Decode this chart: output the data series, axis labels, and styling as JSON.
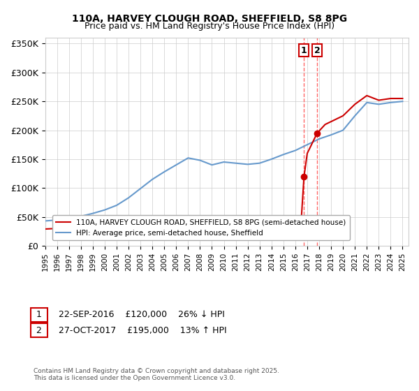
{
  "title": "110A, HARVEY CLOUGH ROAD, SHEFFIELD, S8 8PG",
  "subtitle": "Price paid vs. HM Land Registry's House Price Index (HPI)",
  "ylabel_ticks": [
    "£0",
    "£50K",
    "£100K",
    "£150K",
    "£200K",
    "£250K",
    "£300K",
    "£350K"
  ],
  "ytick_vals": [
    0,
    50000,
    100000,
    150000,
    200000,
    250000,
    300000,
    350000
  ],
  "ylim": [
    0,
    360000
  ],
  "xlim_start": 1995.0,
  "xlim_end": 2025.5,
  "sale1_date": 2016.73,
  "sale1_price": 120000,
  "sale1_label": "1",
  "sale1_annotation": "22-SEP-2016    £120,000    26% ↓ HPI",
  "sale2_date": 2017.83,
  "sale2_price": 195000,
  "sale2_label": "2",
  "sale2_annotation": "27-OCT-2017    £195,000    13% ↑ HPI",
  "red_color": "#cc0000",
  "blue_color": "#6699cc",
  "vline_color": "#ff6666",
  "legend_label_red": "110A, HARVEY CLOUGH ROAD, SHEFFIELD, S8 8PG (semi-detached house)",
  "legend_label_blue": "HPI: Average price, semi-detached house, Sheffield",
  "footnote": "Contains HM Land Registry data © Crown copyright and database right 2025.\nThis data is licensed under the Open Government Licence v3.0.",
  "hpi_years": [
    1995,
    1996,
    1997,
    1998,
    1999,
    2000,
    2001,
    2002,
    2003,
    2004,
    2005,
    2006,
    2007,
    2008,
    2009,
    2010,
    2011,
    2012,
    2013,
    2014,
    2015,
    2016,
    2017,
    2018,
    2019,
    2020,
    2021,
    2022,
    2023,
    2024,
    2025
  ],
  "hpi_values": [
    43000,
    44500,
    47000,
    51000,
    56000,
    62000,
    70000,
    83000,
    99000,
    115000,
    128000,
    140000,
    152000,
    148000,
    140000,
    145000,
    143000,
    141000,
    143000,
    150000,
    158000,
    165000,
    175000,
    185000,
    192000,
    200000,
    225000,
    248000,
    245000,
    248000,
    250000
  ],
  "red_years": [
    1995,
    1996,
    1997,
    1998,
    1999,
    2000,
    2001,
    2002,
    2003,
    2004,
    2005,
    2006,
    2007,
    2008,
    2009,
    2010,
    2011,
    2012,
    2013,
    2014,
    2015,
    2016.5,
    2016.73,
    2017.0,
    2017.83,
    2018.5,
    2019,
    2020,
    2021,
    2022,
    2023,
    2024,
    2025
  ],
  "red_values": [
    29000,
    30000,
    31000,
    32000,
    33000,
    34000,
    35000,
    36000,
    38000,
    40000,
    42000,
    43000,
    45000,
    44000,
    41000,
    42000,
    41000,
    40000,
    41000,
    43000,
    45000,
    46000,
    120000,
    160000,
    195000,
    210000,
    215000,
    225000,
    245000,
    260000,
    252000,
    255000,
    255000
  ]
}
